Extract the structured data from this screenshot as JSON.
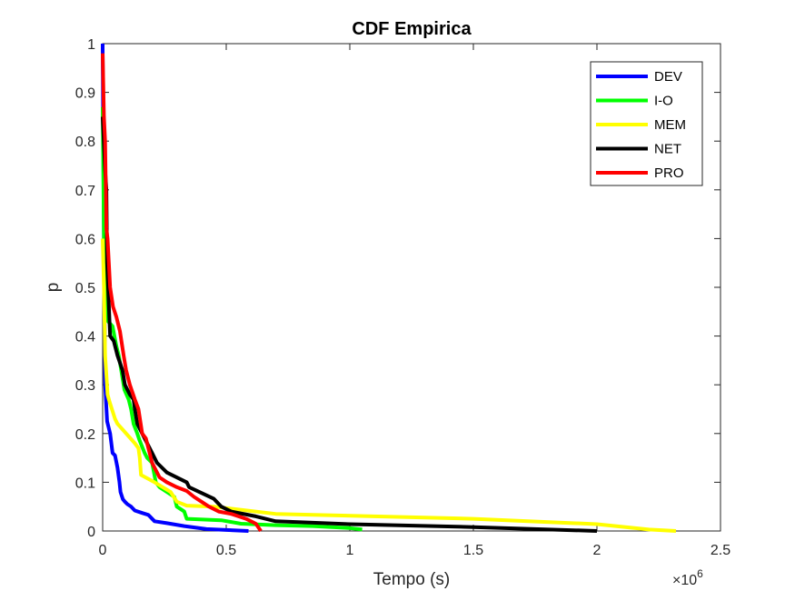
{
  "chart_data": {
    "type": "line",
    "title": "CDF Empirica",
    "xlabel": "Tempo (s)",
    "ylabel": "p",
    "x_multiplier": "×10",
    "x_multiplier_exp": "6",
    "xlim": [
      0,
      2500000
    ],
    "ylim": [
      0,
      1
    ],
    "x_ticks": [
      0,
      500000,
      1000000,
      1500000,
      2000000,
      2500000
    ],
    "x_tick_labels": [
      "0",
      "0.5",
      "1",
      "1.5",
      "2",
      "2.5"
    ],
    "y_ticks": [
      0,
      0.1,
      0.2,
      0.3,
      0.4,
      0.5,
      0.6,
      0.7,
      0.8,
      0.9,
      1
    ],
    "y_tick_labels": [
      "0",
      "0.1",
      "0.2",
      "0.3",
      "0.4",
      "0.5",
      "0.6",
      "0.7",
      "0.8",
      "0.9",
      "1"
    ],
    "grid": false,
    "legend_position": "top-right",
    "series": [
      {
        "name": "DEV",
        "color": "#0000ff",
        "points": [
          [
            0,
            1
          ],
          [
            0,
            0.99
          ],
          [
            5000,
            0.6
          ],
          [
            10000,
            0.3
          ],
          [
            18000,
            0.225
          ],
          [
            30000,
            0.2
          ],
          [
            40000,
            0.16
          ],
          [
            50000,
            0.155
          ],
          [
            60000,
            0.13
          ],
          [
            68000,
            0.1
          ],
          [
            72000,
            0.08
          ],
          [
            82000,
            0.065
          ],
          [
            90000,
            0.06
          ],
          [
            100000,
            0.055
          ],
          [
            115000,
            0.05
          ],
          [
            130000,
            0.042
          ],
          [
            160000,
            0.037
          ],
          [
            185000,
            0.033
          ],
          [
            210000,
            0.02
          ],
          [
            260000,
            0.016
          ],
          [
            330000,
            0.01
          ],
          [
            420000,
            0.004
          ],
          [
            500000,
            0.002
          ],
          [
            590000,
            0.0
          ]
        ]
      },
      {
        "name": "I-O",
        "color": "#00ff00",
        "points": [
          [
            0,
            0.87
          ],
          [
            5000,
            0.6
          ],
          [
            15000,
            0.5
          ],
          [
            22000,
            0.43
          ],
          [
            40000,
            0.42
          ],
          [
            55000,
            0.38
          ],
          [
            65000,
            0.36
          ],
          [
            75000,
            0.33
          ],
          [
            88000,
            0.29
          ],
          [
            105000,
            0.27
          ],
          [
            115000,
            0.25
          ],
          [
            125000,
            0.22
          ],
          [
            140000,
            0.2
          ],
          [
            150000,
            0.185
          ],
          [
            170000,
            0.16
          ],
          [
            180000,
            0.15
          ],
          [
            200000,
            0.14
          ],
          [
            215000,
            0.1
          ],
          [
            230000,
            0.09
          ],
          [
            260000,
            0.08
          ],
          [
            290000,
            0.07
          ],
          [
            300000,
            0.05
          ],
          [
            330000,
            0.04
          ],
          [
            340000,
            0.025
          ],
          [
            480000,
            0.022
          ],
          [
            560000,
            0.015
          ],
          [
            700000,
            0.012
          ],
          [
            850000,
            0.01
          ],
          [
            1000000,
            0.006
          ],
          [
            1050000,
            0.003
          ]
        ]
      },
      {
        "name": "MEM",
        "color": "#ffff00",
        "points": [
          [
            0,
            0.6
          ],
          [
            5000,
            0.5
          ],
          [
            10000,
            0.36
          ],
          [
            15000,
            0.32
          ],
          [
            20000,
            0.28
          ],
          [
            28000,
            0.265
          ],
          [
            50000,
            0.23
          ],
          [
            60000,
            0.22
          ],
          [
            130000,
            0.18
          ],
          [
            145000,
            0.17
          ],
          [
            150000,
            0.15
          ],
          [
            155000,
            0.115
          ],
          [
            210000,
            0.1
          ],
          [
            275000,
            0.08
          ],
          [
            300000,
            0.06
          ],
          [
            340000,
            0.052
          ],
          [
            450000,
            0.05
          ],
          [
            700000,
            0.035
          ],
          [
            1500000,
            0.025
          ],
          [
            2000000,
            0.014
          ],
          [
            2210000,
            0.003
          ],
          [
            2320000,
            0.0
          ]
        ]
      },
      {
        "name": "NET",
        "color": "#000000",
        "points": [
          [
            0,
            0.85
          ],
          [
            10000,
            0.74
          ],
          [
            15000,
            0.7
          ],
          [
            18000,
            0.55
          ],
          [
            22000,
            0.5
          ],
          [
            26000,
            0.45
          ],
          [
            30000,
            0.4
          ],
          [
            45000,
            0.39
          ],
          [
            60000,
            0.36
          ],
          [
            80000,
            0.33
          ],
          [
            90000,
            0.3
          ],
          [
            110000,
            0.28
          ],
          [
            125000,
            0.27
          ],
          [
            130000,
            0.25
          ],
          [
            140000,
            0.22
          ],
          [
            160000,
            0.2
          ],
          [
            200000,
            0.16
          ],
          [
            220000,
            0.14
          ],
          [
            260000,
            0.12
          ],
          [
            340000,
            0.1
          ],
          [
            350000,
            0.09
          ],
          [
            450000,
            0.066
          ],
          [
            480000,
            0.05
          ],
          [
            520000,
            0.04
          ],
          [
            620000,
            0.03
          ],
          [
            700000,
            0.02
          ],
          [
            1000000,
            0.014
          ],
          [
            1500000,
            0.008
          ],
          [
            2000000,
            0.0
          ]
        ]
      },
      {
        "name": "PRO",
        "color": "#ff0000",
        "points": [
          [
            0,
            0.98
          ],
          [
            5000,
            0.85
          ],
          [
            10000,
            0.8
          ],
          [
            15000,
            0.62
          ],
          [
            20000,
            0.6
          ],
          [
            25000,
            0.55
          ],
          [
            30000,
            0.5
          ],
          [
            42000,
            0.46
          ],
          [
            55000,
            0.44
          ],
          [
            70000,
            0.41
          ],
          [
            85000,
            0.36
          ],
          [
            95000,
            0.33
          ],
          [
            110000,
            0.3
          ],
          [
            130000,
            0.27
          ],
          [
            145000,
            0.25
          ],
          [
            160000,
            0.2
          ],
          [
            175000,
            0.19
          ],
          [
            200000,
            0.14
          ],
          [
            210000,
            0.13
          ],
          [
            230000,
            0.11
          ],
          [
            260000,
            0.1
          ],
          [
            300000,
            0.09
          ],
          [
            340000,
            0.082
          ],
          [
            370000,
            0.07
          ],
          [
            400000,
            0.06
          ],
          [
            430000,
            0.05
          ],
          [
            470000,
            0.04
          ],
          [
            520000,
            0.035
          ],
          [
            580000,
            0.025
          ],
          [
            620000,
            0.015
          ],
          [
            640000,
            0.0
          ]
        ]
      }
    ]
  }
}
